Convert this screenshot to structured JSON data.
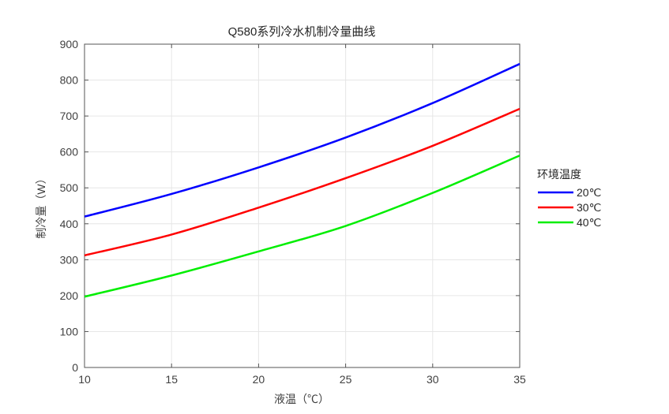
{
  "chart_data": {
    "type": "line",
    "title": "Q580系列冷水机制冷量曲线",
    "xlabel": "液温（℃）",
    "ylabel": "制冷量（W）",
    "xlim": [
      10,
      35
    ],
    "ylim": [
      0,
      900
    ],
    "x_ticks": [
      10,
      15,
      20,
      25,
      30,
      35
    ],
    "y_ticks": [
      0,
      100,
      200,
      300,
      400,
      500,
      600,
      700,
      800,
      900
    ],
    "grid": true,
    "x": [
      10,
      15,
      20,
      25,
      30,
      35
    ],
    "series": [
      {
        "name": "20℃",
        "color": "#0000ff",
        "values": [
          420,
          483,
          557,
          640,
          736,
          845
        ]
      },
      {
        "name": "30℃",
        "color": "#ff0000",
        "values": [
          312,
          370,
          445,
          527,
          617,
          720
        ]
      },
      {
        "name": "40℃",
        "color": "#00ee00",
        "values": [
          197,
          256,
          323,
          394,
          486,
          590
        ]
      }
    ],
    "legend": {
      "title": "环境温度",
      "position": "right-outside"
    }
  },
  "colors": {
    "axis": "#555555",
    "grid": "#e6e6e6",
    "tick_text": "#404040",
    "background": "#ffffff"
  }
}
